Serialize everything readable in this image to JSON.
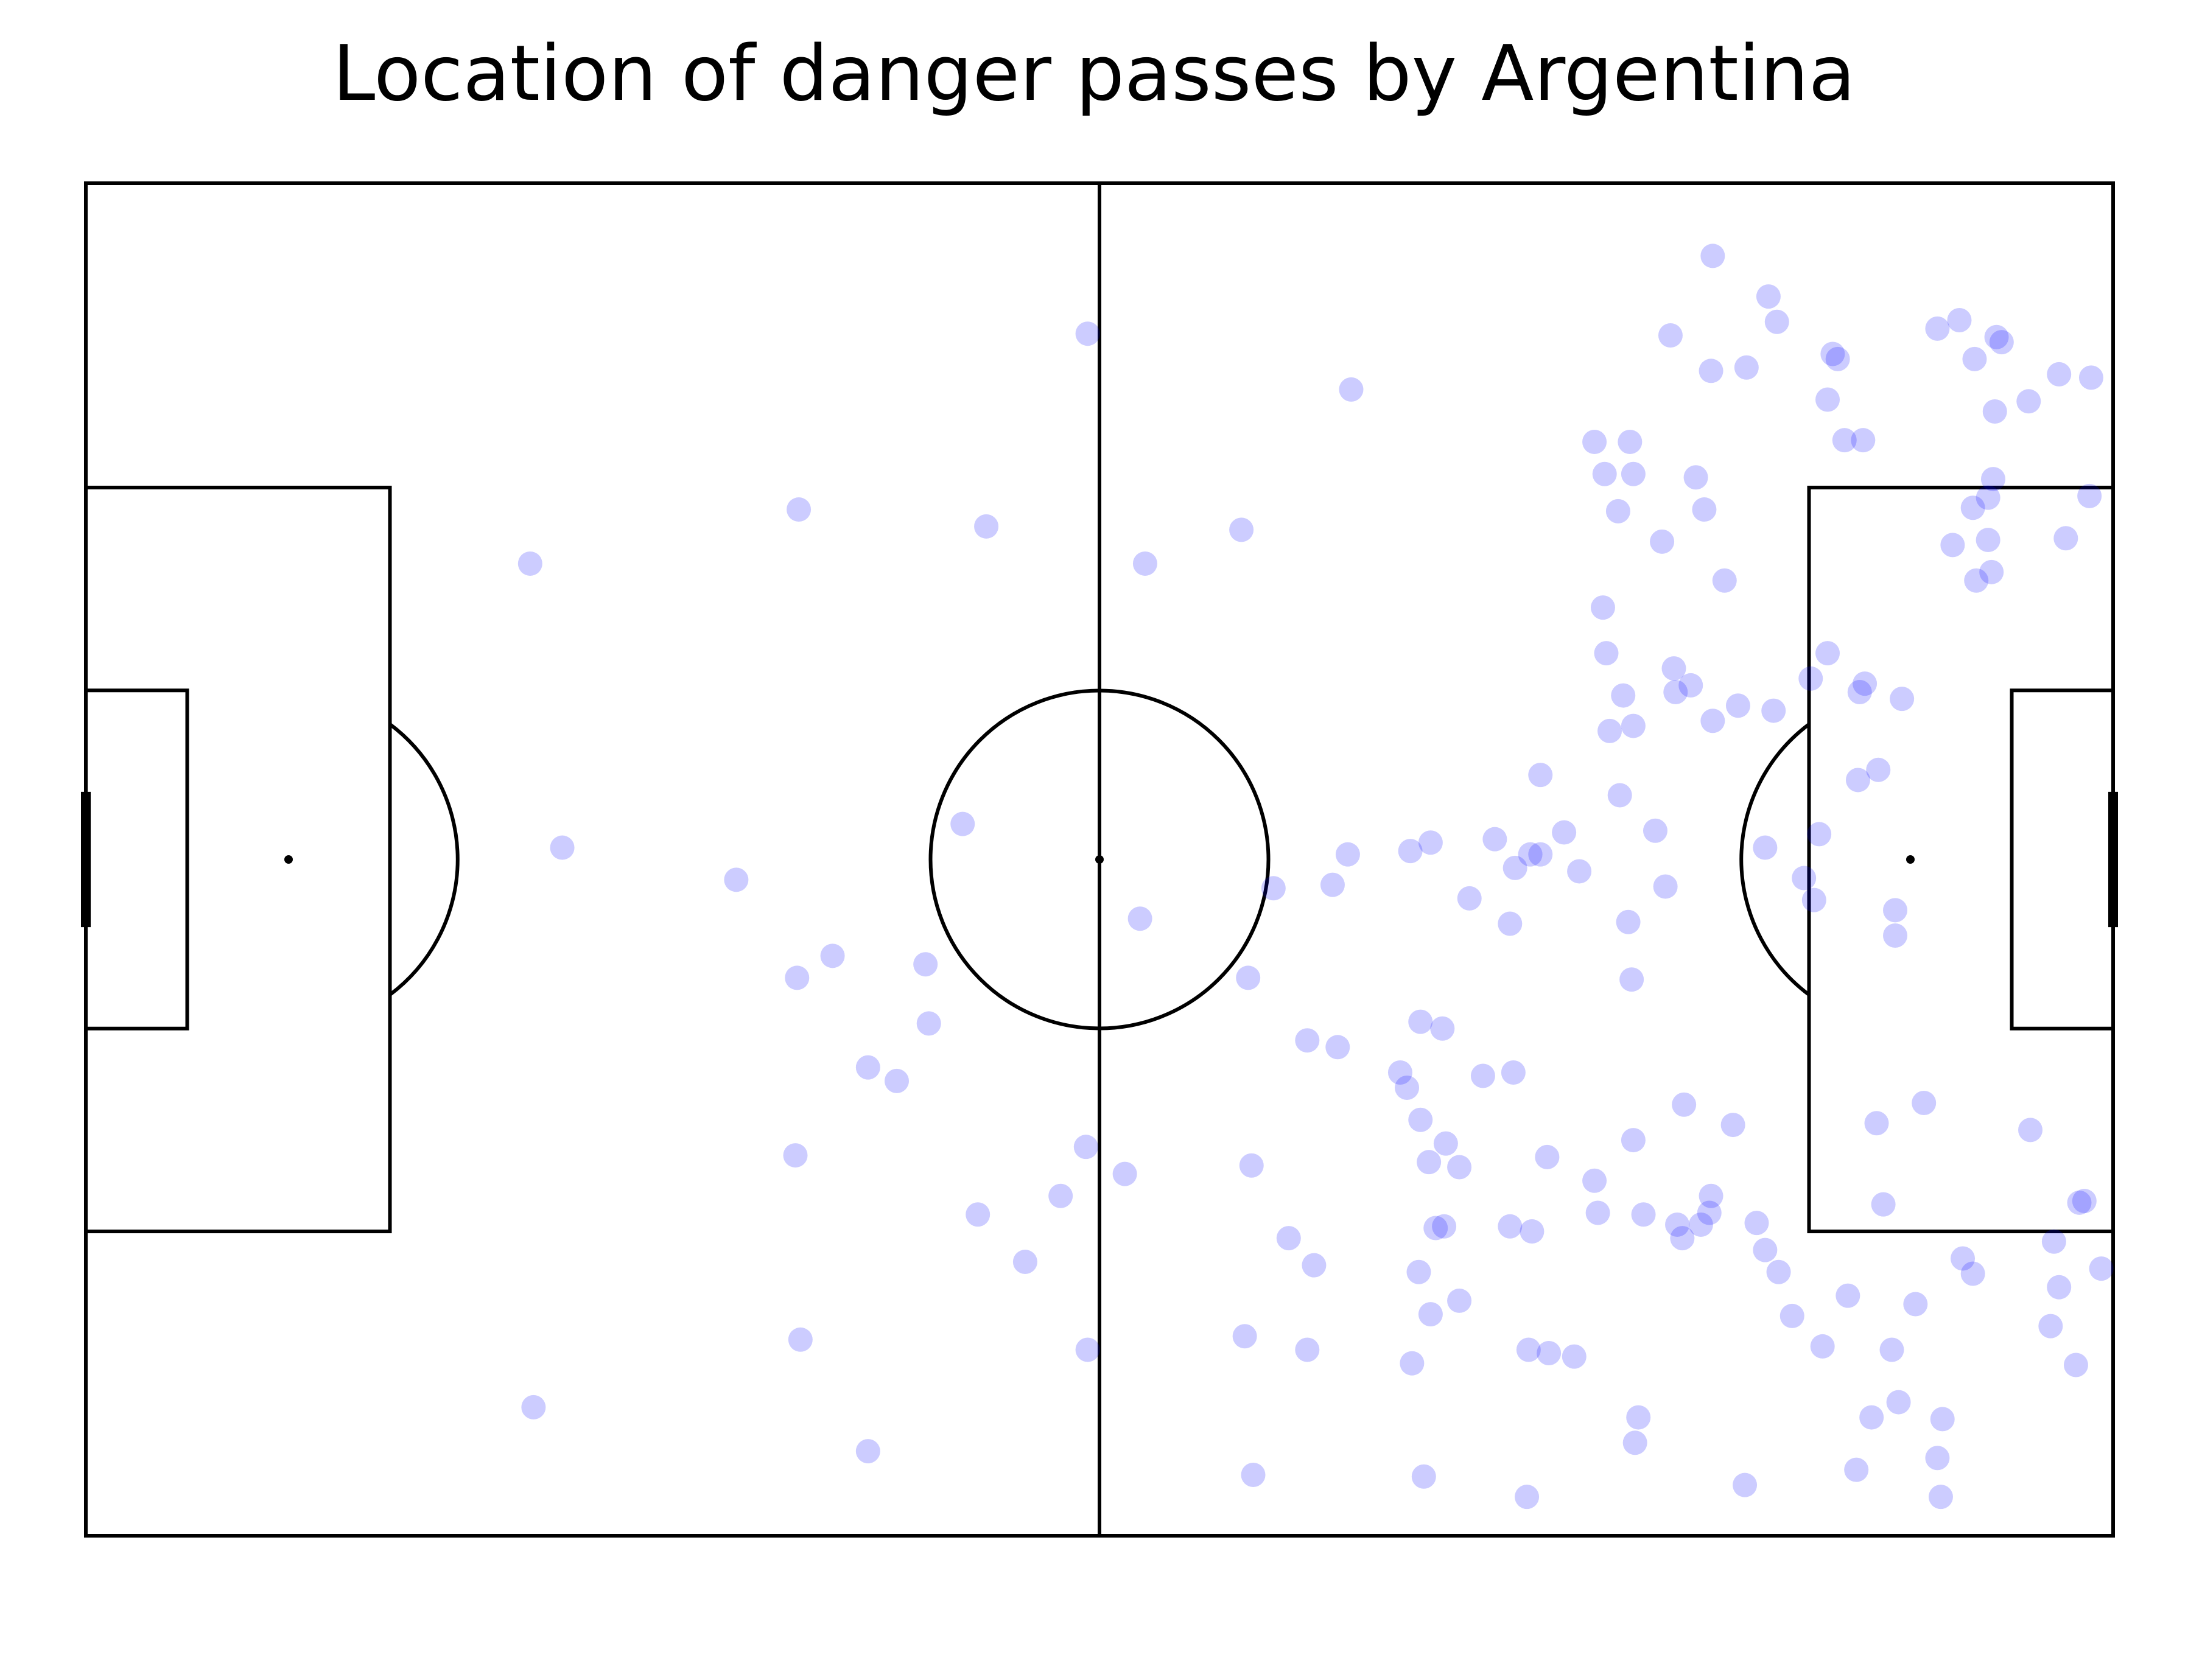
{
  "chart_data": {
    "type": "scatter",
    "title": "Location of danger passes by Argentina",
    "xlabel": "",
    "ylabel": "",
    "pitch": {
      "length": 120,
      "width": 80
    },
    "xlim": [
      0,
      120
    ],
    "ylim": [
      0,
      80
    ],
    "grid": false,
    "marker_color": "#0000ff",
    "marker_alpha": 0.2,
    "points": [
      [
        59.3,
        71.1
      ],
      [
        26.3,
        57.5
      ],
      [
        42.2,
        60.7
      ],
      [
        53.3,
        59.7
      ],
      [
        62.7,
        57.5
      ],
      [
        26.5,
        7.6
      ],
      [
        28.2,
        40.7
      ],
      [
        38.5,
        38.8
      ],
      [
        51.9,
        42.1
      ],
      [
        42.1,
        33.0
      ],
      [
        44.2,
        34.3
      ],
      [
        49.7,
        33.8
      ],
      [
        49.9,
        30.3
      ],
      [
        48.0,
        26.9
      ],
      [
        46.3,
        27.7
      ],
      [
        42.0,
        22.5
      ],
      [
        59.2,
        23.0
      ],
      [
        61.5,
        21.4
      ],
      [
        57.7,
        20.1
      ],
      [
        52.8,
        19.0
      ],
      [
        55.6,
        16.2
      ],
      [
        42.3,
        11.6
      ],
      [
        59.3,
        11.0
      ],
      [
        46.3,
        5.0
      ],
      [
        68.4,
        59.5
      ],
      [
        74.9,
        67.8
      ],
      [
        62.4,
        36.5
      ],
      [
        70.3,
        38.3
      ],
      [
        74.7,
        40.3
      ],
      [
        78.4,
        40.5
      ],
      [
        79.6,
        41.0
      ],
      [
        81.9,
        37.7
      ],
      [
        86.1,
        45.0
      ],
      [
        90.0,
        52.2
      ],
      [
        90.2,
        47.6
      ],
      [
        91.0,
        49.7
      ],
      [
        94.0,
        51.3
      ],
      [
        95.0,
        50.3
      ],
      [
        91.6,
        47.9
      ],
      [
        96.3,
        48.2
      ],
      [
        97.8,
        49.1
      ],
      [
        99.9,
        48.8
      ],
      [
        93.3,
        58.8
      ],
      [
        95.3,
        62.6
      ],
      [
        95.8,
        60.7
      ],
      [
        89.8,
        54.9
      ],
      [
        97.0,
        56.5
      ],
      [
        103.1,
        52.2
      ],
      [
        102.1,
        50.7
      ],
      [
        106.1,
        45.3
      ],
      [
        107.5,
        49.5
      ],
      [
        105.3,
        50.4
      ],
      [
        89.9,
        62.8
      ],
      [
        90.7,
        60.6
      ],
      [
        91.6,
        62.8
      ],
      [
        89.3,
        64.7
      ],
      [
        91.4,
        64.7
      ],
      [
        96.2,
        68.9
      ],
      [
        98.3,
        69.1
      ],
      [
        93.8,
        71.0
      ],
      [
        96.3,
        75.7
      ],
      [
        99.6,
        73.3
      ],
      [
        100.1,
        71.8
      ],
      [
        103.4,
        69.9
      ],
      [
        103.7,
        69.6
      ],
      [
        103.1,
        67.2
      ],
      [
        104.1,
        64.8
      ],
      [
        105.2,
        64.8
      ],
      [
        109.6,
        71.4
      ],
      [
        110.9,
        71.9
      ],
      [
        111.8,
        69.6
      ],
      [
        113.1,
        70.9
      ],
      [
        113.4,
        70.6
      ],
      [
        113.0,
        66.5
      ],
      [
        115.0,
        67.1
      ],
      [
        116.8,
        68.7
      ],
      [
        118.7,
        68.5
      ],
      [
        112.6,
        61.4
      ],
      [
        111.7,
        60.8
      ],
      [
        112.9,
        62.5
      ],
      [
        112.6,
        58.9
      ],
      [
        112.8,
        57.0
      ],
      [
        110.5,
        58.6
      ],
      [
        117.2,
        59.0
      ],
      [
        118.6,
        61.5
      ],
      [
        111.9,
        56.5
      ],
      [
        83.4,
        41.2
      ],
      [
        87.5,
        41.6
      ],
      [
        84.6,
        39.5
      ],
      [
        85.5,
        40.3
      ],
      [
        86.1,
        40.3
      ],
      [
        84.3,
        36.2
      ],
      [
        88.4,
        39.3
      ],
      [
        93.5,
        38.4
      ],
      [
        91.3,
        36.3
      ],
      [
        91.5,
        32.9
      ],
      [
        92.9,
        41.7
      ],
      [
        99.4,
        40.7
      ],
      [
        94.1,
        49.9
      ],
      [
        90.8,
        43.8
      ],
      [
        101.7,
        38.9
      ],
      [
        102.3,
        37.6
      ],
      [
        102.6,
        41.5
      ],
      [
        105.0,
        49.9
      ],
      [
        104.9,
        44.7
      ],
      [
        107.1,
        37.0
      ],
      [
        106.0,
        24.4
      ],
      [
        107.1,
        35.5
      ],
      [
        108.8,
        25.6
      ],
      [
        106.4,
        19.6
      ],
      [
        68.8,
        33.0
      ],
      [
        73.8,
        38.5
      ],
      [
        72.3,
        29.3
      ],
      [
        74.1,
        28.9
      ],
      [
        79.0,
        30.4
      ],
      [
        80.3,
        30.0
      ],
      [
        69.0,
        21.9
      ],
      [
        77.8,
        27.4
      ],
      [
        78.2,
        26.5
      ],
      [
        79.0,
        24.6
      ],
      [
        80.5,
        23.2
      ],
      [
        81.3,
        21.8
      ],
      [
        79.5,
        22.1
      ],
      [
        82.7,
        27.2
      ],
      [
        84.5,
        27.4
      ],
      [
        86.5,
        22.4
      ],
      [
        85.6,
        18.0
      ],
      [
        84.3,
        18.3
      ],
      [
        89.3,
        21.0
      ],
      [
        89.5,
        19.1
      ],
      [
        91.6,
        23.4
      ],
      [
        92.2,
        19.0
      ],
      [
        94.5,
        17.6
      ],
      [
        95.6,
        18.4
      ],
      [
        94.2,
        18.4
      ],
      [
        96.1,
        19.1
      ],
      [
        96.2,
        20.1
      ],
      [
        94.6,
        25.5
      ],
      [
        97.5,
        24.3
      ],
      [
        98.9,
        18.5
      ],
      [
        99.4,
        16.9
      ],
      [
        100.2,
        15.6
      ],
      [
        71.2,
        17.6
      ],
      [
        72.7,
        16.0
      ],
      [
        78.9,
        15.6
      ],
      [
        79.6,
        13.1
      ],
      [
        81.3,
        13.9
      ],
      [
        68.6,
        11.8
      ],
      [
        72.3,
        11.0
      ],
      [
        78.5,
        10.2
      ],
      [
        85.4,
        11.0
      ],
      [
        86.6,
        10.8
      ],
      [
        88.1,
        10.6
      ],
      [
        91.9,
        7.0
      ],
      [
        91.7,
        5.5
      ],
      [
        104.3,
        14.2
      ],
      [
        101.0,
        13.0
      ],
      [
        102.8,
        11.2
      ],
      [
        106.9,
        11.0
      ],
      [
        108.3,
        13.7
      ],
      [
        105.7,
        7.0
      ],
      [
        107.3,
        7.9
      ],
      [
        109.9,
        6.9
      ],
      [
        111.1,
        16.4
      ],
      [
        111.7,
        15.5
      ],
      [
        115.1,
        24.0
      ],
      [
        116.5,
        17.4
      ],
      [
        116.8,
        14.7
      ],
      [
        118.0,
        19.7
      ],
      [
        118.3,
        19.8
      ],
      [
        119.3,
        15.8
      ],
      [
        116.3,
        12.4
      ],
      [
        117.8,
        10.1
      ],
      [
        79.9,
        18.2
      ],
      [
        80.4,
        18.3
      ],
      [
        69.1,
        3.6
      ],
      [
        79.2,
        3.5
      ],
      [
        85.3,
        2.3
      ],
      [
        98.2,
        3.0
      ],
      [
        104.8,
        3.9
      ],
      [
        109.6,
        4.6
      ],
      [
        109.8,
        2.3
      ]
    ]
  }
}
